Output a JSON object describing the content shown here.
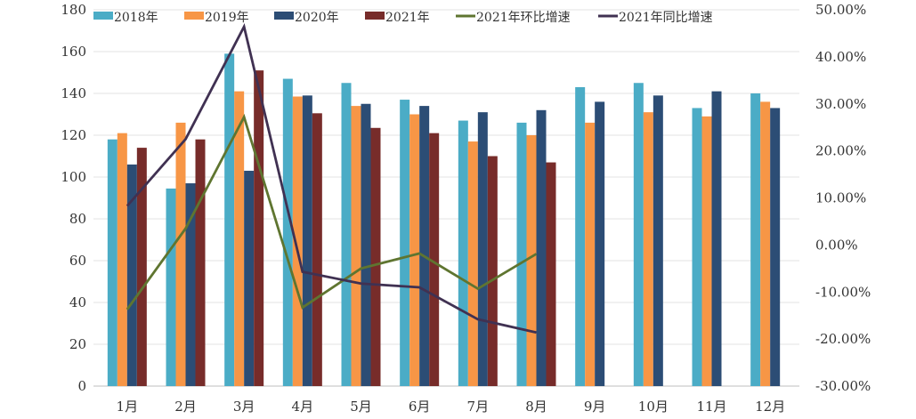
{
  "chart_data": {
    "type": "bar+line",
    "title": "",
    "categories": [
      "1月",
      "2月",
      "3月",
      "4月",
      "5月",
      "6月",
      "7月",
      "8月",
      "9月",
      "10月",
      "11月",
      "12月"
    ],
    "left_axis": {
      "range": [
        0,
        180
      ],
      "step": 20,
      "ticks": [
        "0",
        "20",
        "40",
        "60",
        "80",
        "100",
        "120",
        "140",
        "160",
        "180"
      ]
    },
    "right_axis": {
      "range": [
        -0.3,
        0.5
      ],
      "step": 0.1,
      "ticks": [
        "-30.00%",
        "-20.00%",
        "-10.00%",
        "0.00%",
        "10.00%",
        "20.00%",
        "30.00%",
        "40.00%",
        "50.00%"
      ]
    },
    "grid": true,
    "legend_position": "top",
    "bar_series": [
      {
        "name": "2018年",
        "color": "#4bacc6",
        "values": [
          118,
          94.5,
          159,
          147,
          145,
          137,
          127,
          126,
          143,
          145,
          133,
          140
        ]
      },
      {
        "name": "2019年",
        "color": "#f79646",
        "values": [
          121,
          126,
          141,
          138.5,
          134,
          130,
          117,
          120,
          126,
          131,
          129,
          136
        ]
      },
      {
        "name": "2020年",
        "color": "#2c4d75",
        "values": [
          106,
          97,
          103,
          139,
          135,
          134,
          131,
          132,
          136,
          139,
          141,
          133
        ]
      },
      {
        "name": "2021年",
        "color": "#772c2a",
        "values": [
          114,
          118,
          151,
          130.5,
          123.5,
          121,
          110,
          107,
          null,
          null,
          null,
          null
        ]
      }
    ],
    "line_series": [
      {
        "name": "2021年环比增速",
        "color": "#5f7530",
        "axis": "right",
        "values": [
          -0.137,
          0.035,
          0.272,
          -0.133,
          -0.05,
          -0.018,
          -0.093,
          -0.019,
          null,
          null,
          null,
          null
        ]
      },
      {
        "name": "2021年同比增速",
        "color": "#403152",
        "axis": "right",
        "values": [
          0.083,
          0.225,
          0.464,
          -0.057,
          -0.082,
          -0.09,
          -0.158,
          -0.186,
          null,
          null,
          null,
          null
        ]
      }
    ]
  }
}
